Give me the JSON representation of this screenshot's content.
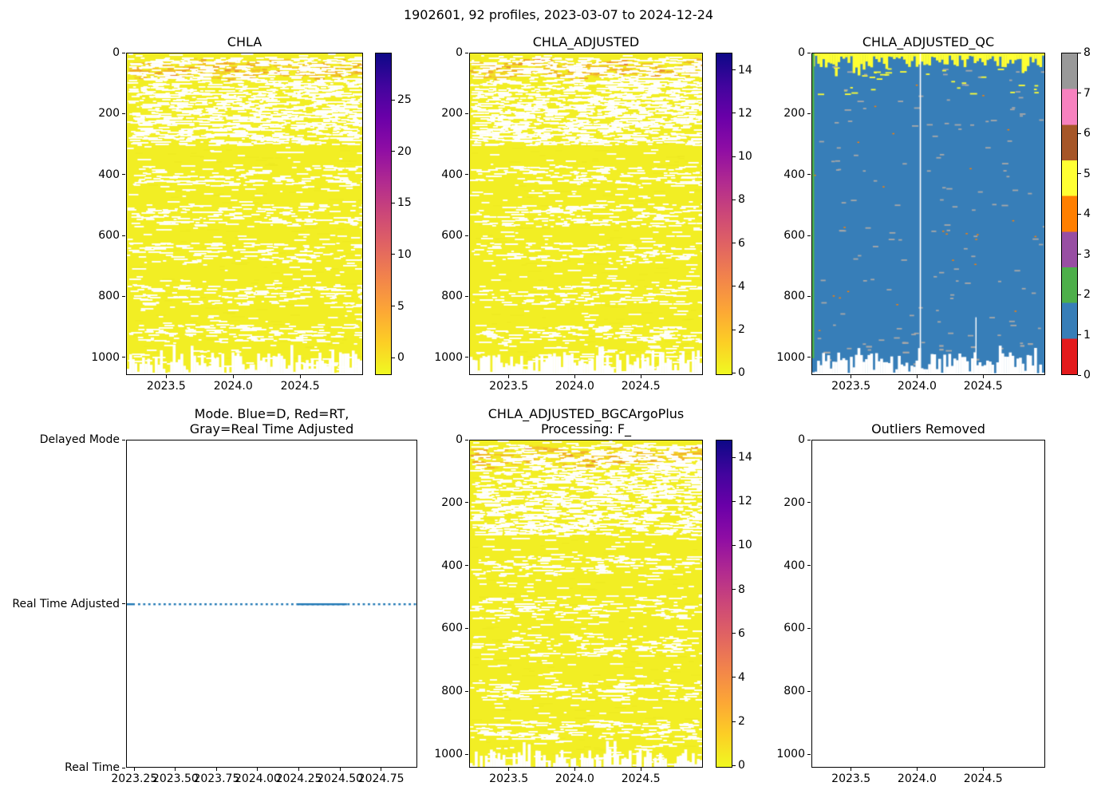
{
  "figure": {
    "title": "1902601, 92 profiles, 2023-03-07 to 2024-12-24",
    "background": "#ffffff",
    "text_color": "#000000"
  },
  "palette": {
    "heatmap_base_yellow": "#f2ee24",
    "heatmap_orange_band": [
      "#f6b32f",
      "#ee8a2a",
      "#e05040"
    ],
    "plasma_r_top_to_bottom": [
      "#0d0887",
      "#41049d",
      "#6a00a8",
      "#8f0da4",
      "#b12a90",
      "#cc4778",
      "#e16462",
      "#f2844b",
      "#fca636",
      "#fcce25",
      "#f0f921"
    ],
    "qc_blue": "#377eb8",
    "qc_yellow": "#ffff33",
    "qc_green": "#4daf4a",
    "qc_gray": "#a8a8a8",
    "qc_orange": "#ff7f00",
    "mode_line_blue": "#1f77b4",
    "set1_bottom_to_top": [
      "#e41a1c",
      "#377eb8",
      "#4daf4a",
      "#984ea3",
      "#ff7f00",
      "#ffff33",
      "#a65628",
      "#f781bf",
      "#999999"
    ]
  },
  "chart_data": [
    {
      "id": "chla",
      "type": "heatmap",
      "render": "chla",
      "title_lines": [
        "CHLA"
      ],
      "x_range": [
        2023.2,
        2024.97
      ],
      "y_range": [
        0,
        1058
      ],
      "x_ticks": [
        {
          "v": 2023.5,
          "label": "2023.5"
        },
        {
          "v": 2024.0,
          "label": "2024.0"
        },
        {
          "v": 2024.5,
          "label": "2024.5"
        }
      ],
      "y_ticks": [
        {
          "v": 0,
          "label": "0"
        },
        {
          "v": 200,
          "label": "200"
        },
        {
          "v": 400,
          "label": "400"
        },
        {
          "v": 600,
          "label": "600"
        },
        {
          "v": 800,
          "label": "800"
        },
        {
          "v": 1000,
          "label": "1000"
        }
      ],
      "colorbar": {
        "kind": "continuous",
        "colormap": "plasma_r",
        "vmin": -1.7,
        "vmax": 29.6,
        "ticks": [
          {
            "v": 0,
            "label": "0"
          },
          {
            "v": 5,
            "label": "5"
          },
          {
            "v": 10,
            "label": "10"
          },
          {
            "v": 15,
            "label": "15"
          },
          {
            "v": 20,
            "label": "20"
          },
          {
            "v": 25,
            "label": "25"
          }
        ]
      },
      "summary": "92 chlorophyll profiles vs pressure 0-~1055 dbar; values mostly near 0 (yellow) with white data-gap dashes, elevated values (orange, ~2-6) around 40-80 dbar; profile bottoms ragged between ~990 and 1055 dbar"
    },
    {
      "id": "chla_adjusted",
      "type": "heatmap",
      "render": "chla",
      "title_lines": [
        "CHLA_ADJUSTED"
      ],
      "x_range": [
        2023.2,
        2024.97
      ],
      "y_range": [
        0,
        1058
      ],
      "x_ticks": [
        {
          "v": 2023.5,
          "label": "2023.5"
        },
        {
          "v": 2024.0,
          "label": "2024.0"
        },
        {
          "v": 2024.5,
          "label": "2024.5"
        }
      ],
      "y_ticks": [
        {
          "v": 0,
          "label": "0"
        },
        {
          "v": 200,
          "label": "200"
        },
        {
          "v": 400,
          "label": "400"
        },
        {
          "v": 600,
          "label": "600"
        },
        {
          "v": 800,
          "label": "800"
        },
        {
          "v": 1000,
          "label": "1000"
        }
      ],
      "colorbar": {
        "kind": "continuous",
        "colormap": "plasma_r",
        "vmin": -0.1,
        "vmax": 14.8,
        "ticks": [
          {
            "v": 0,
            "label": "0"
          },
          {
            "v": 2,
            "label": "2"
          },
          {
            "v": 4,
            "label": "4"
          },
          {
            "v": 6,
            "label": "6"
          },
          {
            "v": 8,
            "label": "8"
          },
          {
            "v": 10,
            "label": "10"
          },
          {
            "v": 12,
            "label": "12"
          },
          {
            "v": 14,
            "label": "14"
          }
        ]
      },
      "summary": "Adjusted chlorophyll; same structure as CHLA, maximum ~14"
    },
    {
      "id": "chla_adjusted_qc",
      "type": "heatmap",
      "render": "qc",
      "title_lines": [
        "CHLA_ADJUSTED_QC"
      ],
      "x_range": [
        2023.2,
        2024.97
      ],
      "y_range": [
        0,
        1058
      ],
      "x_ticks": [
        {
          "v": 2023.5,
          "label": "2023.5"
        },
        {
          "v": 2024.0,
          "label": "2024.0"
        },
        {
          "v": 2024.5,
          "label": "2024.5"
        }
      ],
      "y_ticks": [
        {
          "v": 0,
          "label": "0"
        },
        {
          "v": 200,
          "label": "200"
        },
        {
          "v": 400,
          "label": "400"
        },
        {
          "v": 600,
          "label": "600"
        },
        {
          "v": 800,
          "label": "800"
        },
        {
          "v": 1000,
          "label": "1000"
        }
      ],
      "colorbar": {
        "kind": "discrete",
        "vmin": 0,
        "vmax": 8,
        "ticks": [
          {
            "v": 0,
            "label": "0"
          },
          {
            "v": 1,
            "label": "1"
          },
          {
            "v": 2,
            "label": "2"
          },
          {
            "v": 3,
            "label": "3"
          },
          {
            "v": 4,
            "label": "4"
          },
          {
            "v": 5,
            "label": "5"
          },
          {
            "v": 6,
            "label": "6"
          },
          {
            "v": 7,
            "label": "7"
          },
          {
            "v": 8,
            "label": "8"
          }
        ]
      },
      "summary": "QC flags: mostly 1 (blue); flag 5 (yellow) in the upper ~50 dbar; sparse flag 8 (gray) specks; green stripe (flag 2) at left edge; missing profile shown as white column near 2024.0"
    },
    {
      "id": "mode",
      "type": "line",
      "render": "mode",
      "title_lines": [
        "Mode. Blue=D, Red=RT,",
        "Gray=Real Time Adjusted"
      ],
      "x_range": [
        2023.2,
        2024.97
      ],
      "x_ticks": [
        {
          "v": 2023.25,
          "label": "2023.25"
        },
        {
          "v": 2023.5,
          "label": "2023.50"
        },
        {
          "v": 2023.75,
          "label": "2023.75"
        },
        {
          "v": 2024.0,
          "label": "2024.00"
        },
        {
          "v": 2024.25,
          "label": "2024.25"
        },
        {
          "v": 2024.5,
          "label": "2024.50"
        },
        {
          "v": 2024.75,
          "label": "2024.75"
        }
      ],
      "y_category_ticks": [
        {
          "f": 0,
          "label": "Delayed Mode"
        },
        {
          "f": 0.5,
          "label": "Real Time Adjusted"
        },
        {
          "f": 1,
          "label": "Real Time"
        }
      ],
      "series": [
        {
          "name": "data mode",
          "value": "Real Time Adjusted",
          "style": "dotted",
          "color": "#1f77b4",
          "x_start": 2023.2,
          "x_end": 2024.97,
          "dense_segment": [
            0.59,
            0.76
          ]
        }
      ],
      "summary": "All 92 profiles are Real Time Adjusted: dotted blue line at constant middle level"
    },
    {
      "id": "chla_adjusted_bgcargoplus",
      "type": "heatmap",
      "render": "chla",
      "title_lines": [
        "CHLA_ADJUSTED_BGCArgoPlus",
        "Processing: F_"
      ],
      "x_range": [
        2023.2,
        2024.97
      ],
      "y_range": [
        0,
        1043
      ],
      "x_ticks": [
        {
          "v": 2023.5,
          "label": "2023.5"
        },
        {
          "v": 2024.0,
          "label": "2024.0"
        },
        {
          "v": 2024.5,
          "label": "2024.5"
        }
      ],
      "y_ticks": [
        {
          "v": 0,
          "label": "0"
        },
        {
          "v": 200,
          "label": "200"
        },
        {
          "v": 400,
          "label": "400"
        },
        {
          "v": 600,
          "label": "600"
        },
        {
          "v": 800,
          "label": "800"
        },
        {
          "v": 1000,
          "label": "1000"
        }
      ],
      "colorbar": {
        "kind": "continuous",
        "colormap": "plasma_r",
        "vmin": -0.1,
        "vmax": 14.8,
        "ticks": [
          {
            "v": 0,
            "label": "0"
          },
          {
            "v": 2,
            "label": "2"
          },
          {
            "v": 4,
            "label": "4"
          },
          {
            "v": 6,
            "label": "6"
          },
          {
            "v": 8,
            "label": "8"
          },
          {
            "v": 10,
            "label": "10"
          },
          {
            "v": 12,
            "label": "12"
          },
          {
            "v": 14,
            "label": "14"
          }
        ]
      },
      "summary": "BGC-Argo-Plus processed adjusted chlorophyll; same structure as CHLA_ADJUSTED"
    },
    {
      "id": "outliers_removed",
      "type": "empty",
      "render": "empty",
      "title_lines": [
        "Outliers Removed"
      ],
      "x_range": [
        2023.2,
        2024.97
      ],
      "y_range": [
        0,
        1043
      ],
      "x_ticks": [
        {
          "v": 2023.5,
          "label": "2023.5"
        },
        {
          "v": 2024.0,
          "label": "2024.0"
        },
        {
          "v": 2024.5,
          "label": "2024.5"
        }
      ],
      "y_ticks": [
        {
          "v": 0,
          "label": "0"
        },
        {
          "v": 200,
          "label": "200"
        },
        {
          "v": 400,
          "label": "400"
        },
        {
          "v": 600,
          "label": "600"
        },
        {
          "v": 800,
          "label": "800"
        },
        {
          "v": 1000,
          "label": "1000"
        }
      ],
      "summary": "Empty axes - no outliers were plotted"
    }
  ]
}
